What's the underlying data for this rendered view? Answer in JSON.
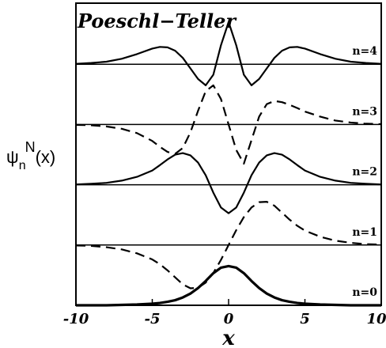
{
  "chart_data": {
    "type": "line",
    "title": "Poeschl−Teller",
    "xlabel": "x",
    "ylabel": "ψ",
    "ylabel_sub": "n",
    "ylabel_sup": "N",
    "ylabel_suffix": "(x)",
    "xlim": [
      -10,
      10
    ],
    "x_ticks": [
      -10,
      -5,
      0,
      5,
      10
    ],
    "x_tick_labels": [
      "-10",
      "-5",
      "0",
      "5",
      "10"
    ],
    "grid": false,
    "legend": "none",
    "series": [
      {
        "name": "n=0",
        "n": 0,
        "baseline": 0.0,
        "amp": 1.3,
        "dashed": false,
        "x": [
          -10,
          -9,
          -8,
          -7,
          -6,
          -5,
          -4.5,
          -4,
          -3.5,
          -3,
          -2.5,
          -2,
          -1.5,
          -1,
          -0.5,
          0,
          0.5,
          1,
          1.5,
          2,
          2.5,
          3,
          3.5,
          4,
          4.5,
          5,
          6,
          7,
          8,
          9,
          10
        ],
        "y": [
          0,
          0,
          0,
          0.01,
          0.02,
          0.04,
          0.06,
          0.09,
          0.13,
          0.2,
          0.3,
          0.44,
          0.62,
          0.82,
          0.96,
          1,
          0.96,
          0.82,
          0.62,
          0.44,
          0.3,
          0.2,
          0.13,
          0.09,
          0.06,
          0.04,
          0.02,
          0.01,
          0,
          0,
          0
        ]
      },
      {
        "name": "n=1",
        "n": 1,
        "baseline": 2.0,
        "amp": 1.45,
        "dashed": true,
        "x": [
          -10,
          -9,
          -8,
          -7,
          -6,
          -5,
          -4.5,
          -4,
          -3.5,
          -3,
          -2.5,
          -2,
          -1.5,
          -1,
          -0.5,
          0,
          0.5,
          1,
          1.5,
          2,
          2.5,
          3,
          3.5,
          4,
          4.5,
          5,
          6,
          7,
          8,
          9,
          10
        ],
        "y": [
          -0.01,
          -0.02,
          -0.05,
          -0.1,
          -0.19,
          -0.33,
          -0.44,
          -0.58,
          -0.74,
          -0.9,
          -0.99,
          -0.98,
          -0.86,
          -0.64,
          -0.34,
          0,
          0.34,
          0.64,
          0.86,
          0.98,
          0.99,
          0.9,
          0.74,
          0.58,
          0.44,
          0.33,
          0.19,
          0.1,
          0.05,
          0.02,
          0.01
        ]
      },
      {
        "name": "n=2",
        "n": 2,
        "baseline": 4.0,
        "amp": 1.05,
        "dashed": false,
        "x": [
          -10,
          -9,
          -8,
          -7,
          -6,
          -5,
          -4.5,
          -4,
          -3.5,
          -3,
          -2.5,
          -2,
          -1.5,
          -1,
          -0.5,
          0,
          0.5,
          1,
          1.5,
          2,
          2.5,
          3,
          3.5,
          4,
          4.5,
          5,
          6,
          7,
          8,
          9,
          10
        ],
        "y": [
          0.01,
          0.03,
          0.06,
          0.13,
          0.25,
          0.45,
          0.62,
          0.8,
          0.95,
          1,
          0.93,
          0.7,
          0.3,
          -0.25,
          -0.72,
          -0.9,
          -0.72,
          -0.25,
          0.3,
          0.7,
          0.93,
          1,
          0.95,
          0.8,
          0.62,
          0.45,
          0.25,
          0.13,
          0.06,
          0.03,
          0.01
        ]
      },
      {
        "name": "n=3",
        "n": 3,
        "baseline": 6.0,
        "amp": 1.3,
        "dashed": true,
        "x": [
          -10,
          -9,
          -8,
          -7,
          -6,
          -5,
          -4.5,
          -4,
          -3.5,
          -3,
          -2.5,
          -2,
          -1.5,
          -1,
          -0.5,
          0,
          0.5,
          1,
          1.5,
          2,
          2.5,
          3,
          3.5,
          4,
          4.5,
          5,
          6,
          7,
          8,
          9,
          10
        ],
        "y": [
          -0.01,
          -0.02,
          -0.05,
          -0.11,
          -0.22,
          -0.42,
          -0.57,
          -0.7,
          -0.75,
          -0.6,
          -0.2,
          0.35,
          0.85,
          1,
          0.65,
          0,
          -0.65,
          -1,
          -0.4,
          0.2,
          0.52,
          0.6,
          0.57,
          0.5,
          0.42,
          0.33,
          0.2,
          0.1,
          0.05,
          0.02,
          0.01
        ]
      },
      {
        "name": "n=4",
        "n": 4,
        "baseline": 8.0,
        "amp": 1.4,
        "dashed": false,
        "x": [
          -10,
          -9,
          -8,
          -7,
          -6,
          -5,
          -4.5,
          -4,
          -3.5,
          -3,
          -2.5,
          -2,
          -1.5,
          -1,
          -0.5,
          0,
          0.5,
          1,
          1.5,
          2,
          2.5,
          3,
          3.5,
          4,
          4.5,
          5,
          6,
          7,
          8,
          9,
          10
        ],
        "y": [
          0.01,
          0.03,
          0.06,
          0.13,
          0.24,
          0.37,
          0.41,
          0.4,
          0.32,
          0.15,
          -0.1,
          -0.35,
          -0.5,
          -0.25,
          0.45,
          1,
          0.45,
          -0.25,
          -0.5,
          -0.35,
          -0.1,
          0.15,
          0.32,
          0.4,
          0.41,
          0.37,
          0.24,
          0.13,
          0.06,
          0.03,
          0.01
        ]
      }
    ]
  }
}
